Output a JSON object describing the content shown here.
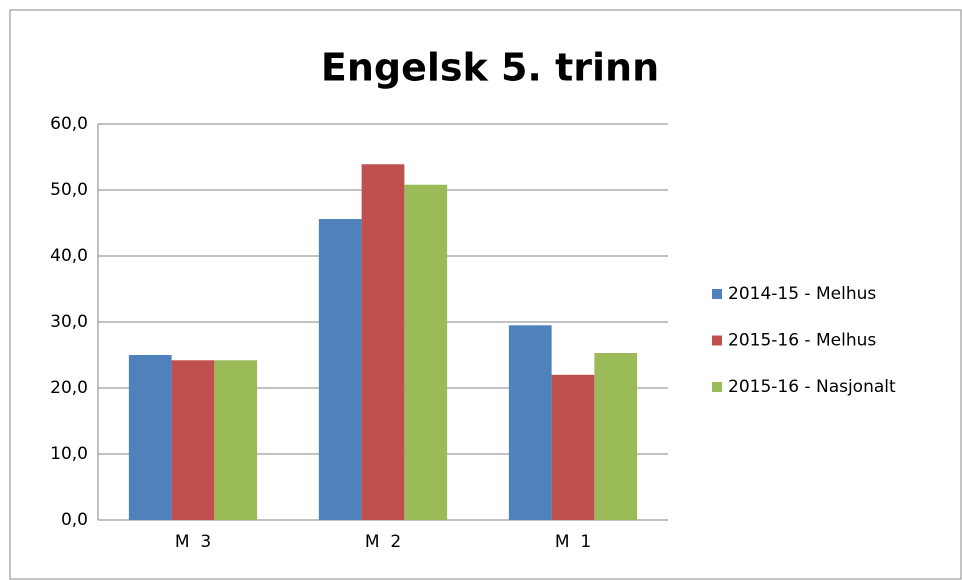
{
  "chart_data": {
    "type": "bar",
    "title": "Engelsk 5. trinn",
    "categories": [
      "M  3",
      "M  2",
      "M  1"
    ],
    "series": [
      {
        "name": "2014-15 - Melhus",
        "color": "#4f81bd",
        "values": [
          25.0,
          45.6,
          29.5
        ]
      },
      {
        "name": "2015-16 - Melhus",
        "color": "#c0504d",
        "values": [
          24.2,
          53.9,
          22.0
        ]
      },
      {
        "name": "2015-16 - Nasjonalt",
        "color": "#9bbb59",
        "values": [
          24.2,
          50.8,
          25.3
        ]
      }
    ],
    "ylim": [
      0,
      60
    ],
    "yticks": [
      {
        "value": 0,
        "label": "0,0"
      },
      {
        "value": 10,
        "label": "10,0"
      },
      {
        "value": 20,
        "label": "20,0"
      },
      {
        "value": 30,
        "label": "30,0"
      },
      {
        "value": 40,
        "label": "40,0"
      },
      {
        "value": 50,
        "label": "50,0"
      },
      {
        "value": 60,
        "label": "60,0"
      }
    ],
    "grid": true,
    "legend": "right"
  }
}
